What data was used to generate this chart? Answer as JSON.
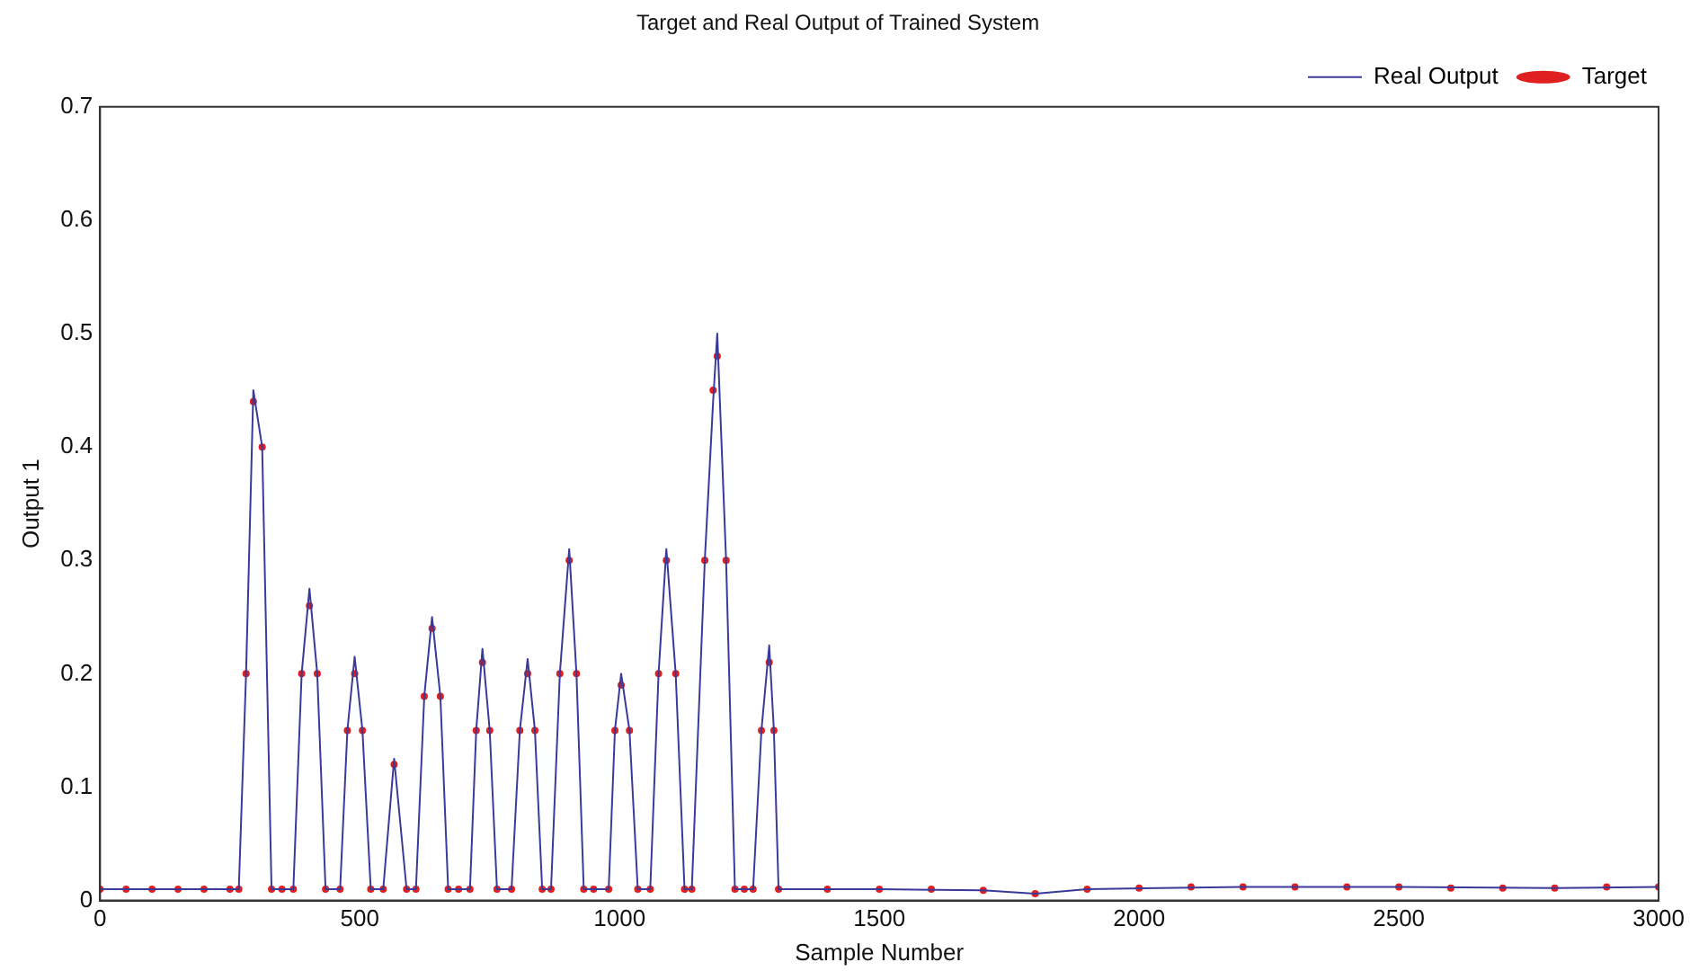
{
  "chart_data": {
    "type": "line",
    "title": "Target and Real Output of Trained System",
    "xlabel": "Sample Number",
    "ylabel": "Output 1",
    "xlim": [
      0,
      3000
    ],
    "xticks": [
      0,
      500,
      1000,
      1500,
      2000,
      2500,
      3000
    ],
    "ylim": [
      0,
      0.7
    ],
    "yticks": [
      0,
      0.1,
      0.2,
      0.3,
      0.4,
      0.5,
      0.6,
      0.7
    ],
    "grid": false,
    "legend": "top right",
    "series": [
      {
        "name": "Real Output",
        "color": "#3a3a9a",
        "marker": "none",
        "x": [
          0,
          267,
          281,
          295,
          312,
          330,
          372,
          388,
          403,
          418,
          434,
          462,
          476,
          490,
          505,
          521,
          545,
          566,
          590,
          608,
          624,
          639,
          655,
          670,
          712,
          724,
          736,
          750,
          764,
          792,
          808,
          823,
          837,
          851,
          868,
          885,
          903,
          917,
          931,
          979,
          991,
          1003,
          1019,
          1035,
          1059,
          1075,
          1090,
          1108,
          1125,
          1139,
          1164,
          1180,
          1188,
          1205,
          1222,
          1257,
          1273,
          1288,
          1297,
          1306,
          1500,
          1700,
          1800,
          1900,
          2200,
          2500,
          2800,
          3000
        ],
        "values": [
          0.01,
          0.01,
          0.2,
          0.45,
          0.4,
          0.01,
          0.01,
          0.2,
          0.275,
          0.2,
          0.01,
          0.01,
          0.15,
          0.215,
          0.15,
          0.01,
          0.01,
          0.125,
          0.01,
          0.01,
          0.18,
          0.25,
          0.18,
          0.01,
          0.01,
          0.15,
          0.222,
          0.15,
          0.01,
          0.01,
          0.15,
          0.213,
          0.15,
          0.01,
          0.01,
          0.2,
          0.31,
          0.2,
          0.01,
          0.01,
          0.15,
          0.2,
          0.15,
          0.01,
          0.01,
          0.2,
          0.31,
          0.2,
          0.01,
          0.01,
          0.3,
          0.44,
          0.5,
          0.3,
          0.01,
          0.01,
          0.15,
          0.225,
          0.15,
          0.01,
          0.01,
          0.009,
          0.006,
          0.01,
          0.012,
          0.012,
          0.011,
          0.012
        ]
      },
      {
        "name": "Target",
        "type": "scatter",
        "color": "#e02020",
        "marker": "circle",
        "x": [
          0,
          50,
          100,
          150,
          200,
          250,
          267,
          281,
          295,
          312,
          330,
          350,
          372,
          388,
          403,
          418,
          434,
          462,
          476,
          490,
          505,
          521,
          545,
          566,
          590,
          608,
          624,
          639,
          655,
          670,
          690,
          712,
          724,
          736,
          750,
          764,
          792,
          808,
          823,
          837,
          851,
          868,
          885,
          903,
          917,
          931,
          950,
          979,
          991,
          1003,
          1019,
          1035,
          1059,
          1075,
          1090,
          1108,
          1125,
          1139,
          1164,
          1180,
          1188,
          1205,
          1222,
          1240,
          1257,
          1273,
          1288,
          1297,
          1306,
          1400,
          1500,
          1600,
          1700,
          1800,
          1900,
          2000,
          2100,
          2200,
          2300,
          2400,
          2500,
          2600,
          2700,
          2800,
          2900,
          3000
        ],
        "values": [
          0.01,
          0.01,
          0.01,
          0.01,
          0.01,
          0.01,
          0.01,
          0.2,
          0.44,
          0.4,
          0.01,
          0.01,
          0.01,
          0.2,
          0.26,
          0.2,
          0.01,
          0.01,
          0.15,
          0.2,
          0.15,
          0.01,
          0.01,
          0.12,
          0.01,
          0.01,
          0.18,
          0.24,
          0.18,
          0.01,
          0.01,
          0.01,
          0.15,
          0.21,
          0.15,
          0.01,
          0.01,
          0.15,
          0.2,
          0.15,
          0.01,
          0.01,
          0.2,
          0.3,
          0.2,
          0.01,
          0.01,
          0.01,
          0.15,
          0.19,
          0.15,
          0.01,
          0.01,
          0.2,
          0.3,
          0.2,
          0.01,
          0.01,
          0.3,
          0.45,
          0.48,
          0.3,
          0.01,
          0.01,
          0.01,
          0.15,
          0.21,
          0.15,
          0.01,
          0.01,
          0.01,
          0.01,
          0.009,
          0.006,
          0.01,
          0.011,
          0.012,
          0.012,
          0.012,
          0.012,
          0.012,
          0.011,
          0.011,
          0.011,
          0.012,
          0.012
        ]
      }
    ]
  }
}
